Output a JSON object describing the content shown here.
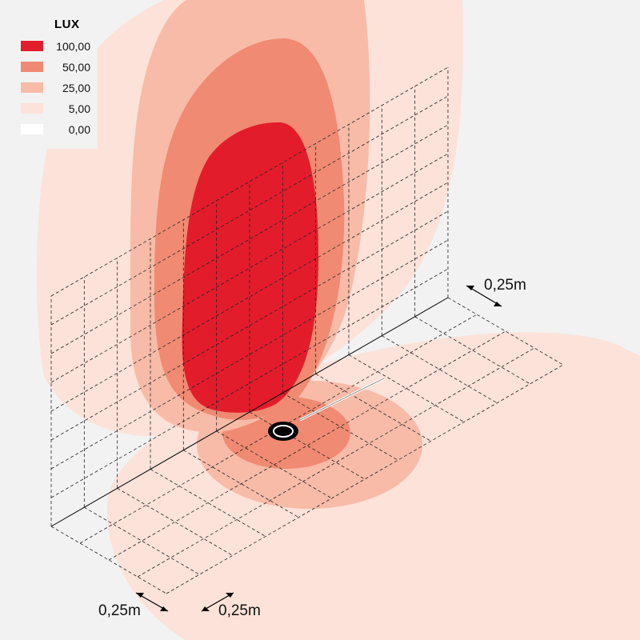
{
  "legend": {
    "title": "LUX",
    "items": [
      {
        "label": "100,00",
        "color": "#e31c2c"
      },
      {
        "label": "50,00",
        "color": "#f08a72"
      },
      {
        "label": "25,00",
        "color": "#f7bba8"
      },
      {
        "label": "5,00",
        "color": "#fce2d9"
      },
      {
        "label": "0,00",
        "color": "#ffffff"
      }
    ]
  },
  "dimensions": {
    "right": "0,25m",
    "bottom_left": "0,25m",
    "bottom_right": "0,25m"
  }
}
